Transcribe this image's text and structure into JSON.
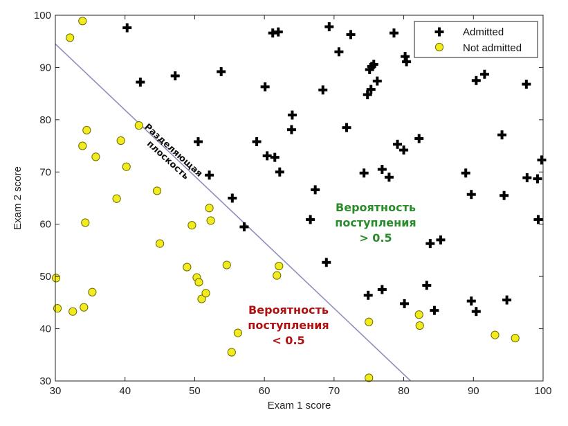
{
  "chart_data": {
    "type": "scatter",
    "xlabel": "Exam 1 score",
    "ylabel": "Exam 2 score",
    "xlim": [
      30,
      100
    ],
    "ylim": [
      30,
      100
    ],
    "xticks": [
      "30",
      "40",
      "50",
      "60",
      "70",
      "80",
      "90",
      "100"
    ],
    "yticks": [
      "30",
      "40",
      "50",
      "60",
      "70",
      "80",
      "90",
      "100"
    ],
    "grid": false,
    "legend_position": "top-right",
    "series": [
      {
        "name": "Admitted",
        "marker": "plus",
        "color": "#000000",
        "points": [
          [
            40.3,
            97.6
          ],
          [
            42.2,
            87.2
          ],
          [
            47.2,
            88.4
          ],
          [
            53.8,
            89.2
          ],
          [
            60.1,
            86.3
          ],
          [
            61.2,
            96.6
          ],
          [
            62.0,
            96.8
          ],
          [
            69.3,
            97.8
          ],
          [
            70.7,
            93.0
          ],
          [
            72.4,
            96.3
          ],
          [
            68.4,
            85.7
          ],
          [
            74.8,
            84.8
          ],
          [
            75.3,
            85.8
          ],
          [
            75.1,
            89.6
          ],
          [
            75.4,
            90.2
          ],
          [
            75.7,
            90.6
          ],
          [
            76.2,
            87.4
          ],
          [
            78.6,
            96.6
          ],
          [
            80.2,
            92.1
          ],
          [
            80.4,
            91.1
          ],
          [
            64.0,
            80.9
          ],
          [
            63.9,
            78.1
          ],
          [
            71.8,
            78.5
          ],
          [
            50.5,
            75.8
          ],
          [
            58.9,
            75.8
          ],
          [
            60.4,
            73.1
          ],
          [
            61.5,
            72.8
          ],
          [
            62.2,
            70.0
          ],
          [
            52.1,
            69.4
          ],
          [
            55.4,
            65.0
          ],
          [
            67.3,
            66.6
          ],
          [
            66.6,
            60.9
          ],
          [
            57.1,
            59.5
          ],
          [
            74.3,
            69.8
          ],
          [
            76.9,
            70.5
          ],
          [
            77.9,
            69.0
          ],
          [
            79.1,
            75.3
          ],
          [
            80.0,
            74.2
          ],
          [
            82.2,
            76.4
          ],
          [
            88.9,
            69.8
          ],
          [
            89.7,
            65.7
          ],
          [
            94.4,
            65.5
          ],
          [
            90.4,
            87.5
          ],
          [
            91.6,
            88.7
          ],
          [
            94.1,
            77.1
          ],
          [
            97.6,
            86.8
          ],
          [
            97.7,
            68.9
          ],
          [
            99.2,
            68.7
          ],
          [
            99.8,
            72.3
          ],
          [
            99.3,
            60.9
          ],
          [
            83.8,
            56.3
          ],
          [
            85.3,
            57.0
          ],
          [
            68.9,
            52.7
          ],
          [
            74.9,
            46.4
          ],
          [
            76.9,
            47.5
          ],
          [
            80.1,
            44.8
          ],
          [
            83.3,
            48.3
          ],
          [
            84.4,
            43.5
          ],
          [
            89.7,
            45.3
          ],
          [
            90.4,
            43.3
          ],
          [
            94.8,
            45.5
          ]
        ]
      },
      {
        "name": "Not admitted",
        "marker": "circle",
        "color": "#f2ec1e",
        "points": [
          [
            33.9,
            98.9
          ],
          [
            32.1,
            95.7
          ],
          [
            42.0,
            78.9
          ],
          [
            34.5,
            78.0
          ],
          [
            33.9,
            75.0
          ],
          [
            35.8,
            72.9
          ],
          [
            39.4,
            76.0
          ],
          [
            40.2,
            71.0
          ],
          [
            44.6,
            66.4
          ],
          [
            38.8,
            64.9
          ],
          [
            34.3,
            60.3
          ],
          [
            49.6,
            59.8
          ],
          [
            52.1,
            63.1
          ],
          [
            52.3,
            60.7
          ],
          [
            45.0,
            56.3
          ],
          [
            48.9,
            51.8
          ],
          [
            54.6,
            52.2
          ],
          [
            50.3,
            49.8
          ],
          [
            50.6,
            48.9
          ],
          [
            51.0,
            45.7
          ],
          [
            51.6,
            46.8
          ],
          [
            61.8,
            50.2
          ],
          [
            62.1,
            52.0
          ],
          [
            30.1,
            49.7
          ],
          [
            30.3,
            43.9
          ],
          [
            32.5,
            43.3
          ],
          [
            34.1,
            44.1
          ],
          [
            35.3,
            47.0
          ],
          [
            56.2,
            39.2
          ],
          [
            55.3,
            35.5
          ],
          [
            75.0,
            41.3
          ],
          [
            75.0,
            30.6
          ],
          [
            82.2,
            42.7
          ],
          [
            82.3,
            40.6
          ],
          [
            93.1,
            38.8
          ],
          [
            96.0,
            38.2
          ]
        ]
      }
    ],
    "decision_boundary": [
      [
        30,
        94.5
      ],
      [
        81.0,
        30
      ]
    ],
    "boundary_label": [
      "Разделяющая",
      "плоскость"
    ],
    "annotations": [
      {
        "lines": [
          "Вероятность",
          "поступления",
          "> 0.5"
        ],
        "color": "#2a8c2a"
      },
      {
        "lines": [
          "Вероятность",
          "поступления",
          "< 0.5"
        ],
        "color": "#b01010"
      }
    ]
  }
}
